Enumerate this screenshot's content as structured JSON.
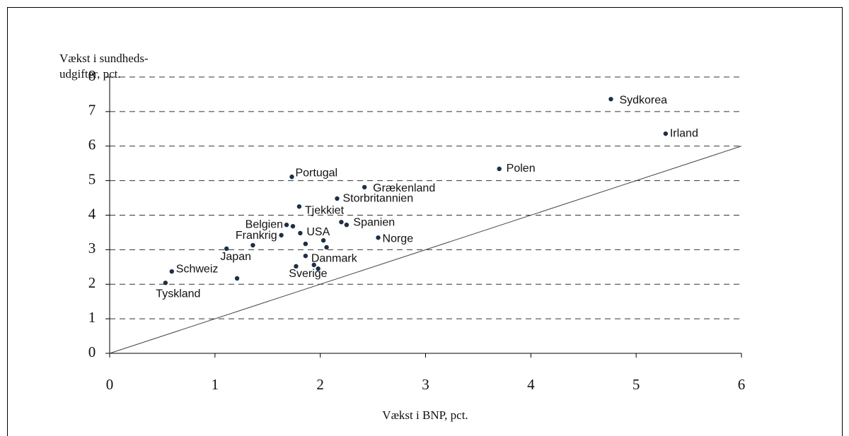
{
  "chart_data": {
    "type": "scatter",
    "ylabel": [
      "Vækst i sundheds-",
      "udgifter, pct."
    ],
    "xlabel": "Vækst i BNP, pct.",
    "x": [
      4.76,
      5.28,
      3.7,
      1.73,
      2.42,
      2.16,
      1.8,
      2.2,
      2.25,
      1.68,
      1.74,
      1.81,
      1.63,
      2.03,
      1.86,
      2.55,
      1.11,
      1.36,
      2.06,
      1.86,
      1.94,
      1.77,
      1.98,
      0.59,
      1.21,
      0.53
    ],
    "values": [
      7.36,
      6.36,
      5.34,
      5.11,
      4.81,
      4.48,
      4.25,
      3.8,
      3.72,
      3.72,
      3.68,
      3.48,
      3.42,
      3.27,
      3.17,
      3.35,
      3.03,
      3.13,
      3.07,
      2.82,
      2.56,
      2.52,
      2.45,
      2.37,
      2.17,
      2.04
    ],
    "point_labels": [
      "Sydkorea",
      "Irland",
      "Polen",
      "Portugal",
      "Grækenland",
      "Storbritannien",
      "Tjekkiet",
      "Spanien",
      null,
      "Belgien",
      null,
      "USA",
      "Frankrig",
      null,
      null,
      "Norge",
      "Japan",
      null,
      null,
      "Danmark",
      null,
      "Sverige",
      null,
      "Schweiz",
      null,
      "Tyskland"
    ],
    "color": "#1c2f45",
    "xlim": [
      0,
      6
    ],
    "xticks": [
      0,
      1,
      2,
      3,
      4,
      5,
      6
    ],
    "ylim": [
      0,
      8
    ],
    "yticks": [
      0,
      1,
      2,
      3,
      4,
      5,
      6,
      7,
      8
    ],
    "grid": true
  }
}
